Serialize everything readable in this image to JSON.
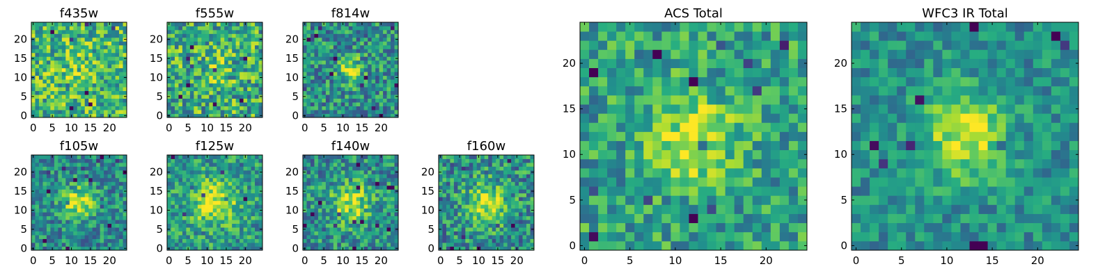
{
  "figure": {
    "background": "#ffffff"
  },
  "chart_data": [
    {
      "type": "heatmap",
      "title": "f435w",
      "grid": false,
      "xlim": [
        0,
        25
      ],
      "ylim": [
        0,
        25
      ],
      "xticks": [
        0,
        5,
        10,
        15,
        20
      ],
      "yticks": [
        0,
        5,
        10,
        15,
        20
      ],
      "colormap": "viridis",
      "seed": 11,
      "peak": 0.1,
      "base": 0.66,
      "noise": 0.3,
      "sigma": 4
    },
    {
      "type": "heatmap",
      "title": "f555w",
      "grid": false,
      "xlim": [
        0,
        25
      ],
      "ylim": [
        0,
        25
      ],
      "xticks": [
        0,
        5,
        10,
        15,
        20
      ],
      "yticks": [
        0,
        5,
        10,
        15,
        20
      ],
      "colormap": "viridis",
      "seed": 23,
      "peak": 0.1,
      "base": 0.62,
      "noise": 0.32,
      "sigma": 4
    },
    {
      "type": "heatmap",
      "title": "f814w",
      "grid": false,
      "xlim": [
        0,
        25
      ],
      "ylim": [
        0,
        25
      ],
      "xticks": [
        0,
        5,
        10,
        15,
        20
      ],
      "yticks": [
        0,
        5,
        10,
        15,
        20
      ],
      "colormap": "viridis",
      "seed": 37,
      "peak": 0.45,
      "base": 0.5,
      "noise": 0.28,
      "sigma": 2.2
    },
    {
      "type": "heatmap",
      "title": "f105w",
      "grid": false,
      "xlim": [
        0,
        25
      ],
      "ylim": [
        0,
        25
      ],
      "xticks": [
        0,
        5,
        10,
        15,
        20
      ],
      "yticks": [
        0,
        5,
        10,
        15,
        20
      ],
      "colormap": "viridis",
      "seed": 41,
      "peak": 0.45,
      "base": 0.48,
      "noise": 0.24,
      "sigma": 3
    },
    {
      "type": "heatmap",
      "title": "f125w",
      "grid": false,
      "xlim": [
        0,
        25
      ],
      "ylim": [
        0,
        25
      ],
      "xticks": [
        0,
        5,
        10,
        15,
        20
      ],
      "yticks": [
        0,
        5,
        10,
        15,
        20
      ],
      "colormap": "viridis",
      "seed": 53,
      "peak": 0.42,
      "base": 0.55,
      "noise": 0.24,
      "sigma": 4
    },
    {
      "type": "heatmap",
      "title": "f140w",
      "grid": false,
      "xlim": [
        0,
        25
      ],
      "ylim": [
        0,
        25
      ],
      "xticks": [
        0,
        5,
        10,
        15,
        20
      ],
      "yticks": [
        0,
        5,
        10,
        15,
        20
      ],
      "colormap": "viridis",
      "seed": 67,
      "peak": 0.42,
      "base": 0.5,
      "noise": 0.26,
      "sigma": 3.6
    },
    {
      "type": "heatmap",
      "title": "f160w",
      "grid": false,
      "xlim": [
        0,
        25
      ],
      "ylim": [
        0,
        25
      ],
      "xticks": [
        0,
        5,
        10,
        15,
        20
      ],
      "yticks": [
        0,
        5,
        10,
        15,
        20
      ],
      "colormap": "viridis",
      "seed": 79,
      "peak": 0.45,
      "base": 0.5,
      "noise": 0.28,
      "sigma": 3.6
    },
    {
      "type": "heatmap",
      "title": "ACS Total",
      "grid": false,
      "xlim": [
        0,
        25
      ],
      "ylim": [
        0,
        25
      ],
      "xticks": [
        0,
        5,
        10,
        15,
        20
      ],
      "yticks": [
        0,
        5,
        10,
        15,
        20
      ],
      "colormap": "viridis",
      "seed": 89,
      "peak": 0.38,
      "base": 0.58,
      "noise": 0.24,
      "sigma": 3.2
    },
    {
      "type": "heatmap",
      "title": "WFC3 IR Total",
      "grid": false,
      "xlim": [
        0,
        25
      ],
      "ylim": [
        0,
        25
      ],
      "xticks": [
        0,
        5,
        10,
        15,
        20
      ],
      "yticks": [
        0,
        5,
        10,
        15,
        20
      ],
      "colormap": "viridis",
      "seed": 97,
      "peak": 0.45,
      "base": 0.5,
      "noise": 0.18,
      "sigma": 3.2
    }
  ]
}
